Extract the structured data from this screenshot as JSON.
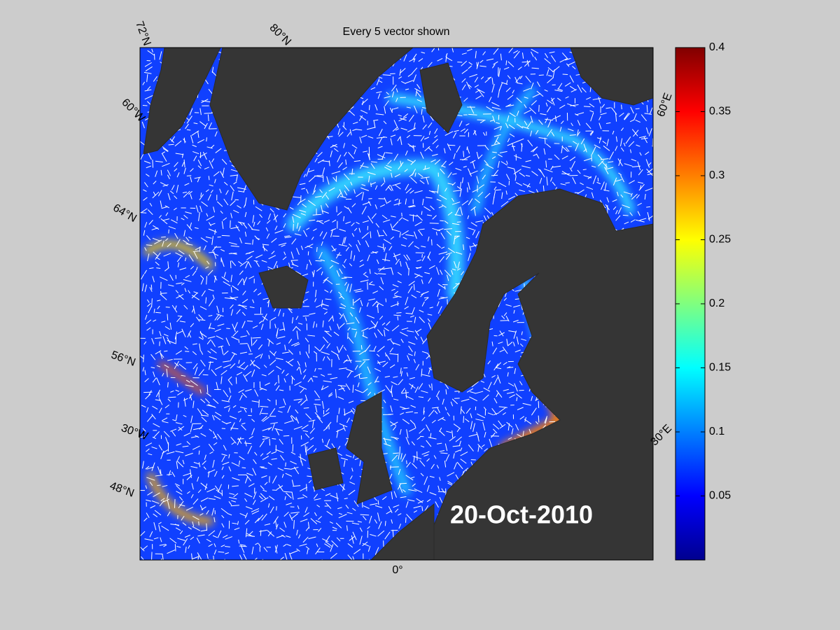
{
  "title": "Every 5 vector shown",
  "date": "20-Oct-2010",
  "graticule_labels": [
    "72°N",
    "80°N",
    "60°W",
    "64°N",
    "56°N",
    "30°W",
    "48°N",
    "0°",
    "30°E",
    "60°E"
  ],
  "colorbar": {
    "clim": [
      0,
      0.4
    ],
    "ticks": [
      0.05,
      0.1,
      0.15,
      0.2,
      0.25,
      0.3,
      0.35,
      0.4
    ]
  }
}
